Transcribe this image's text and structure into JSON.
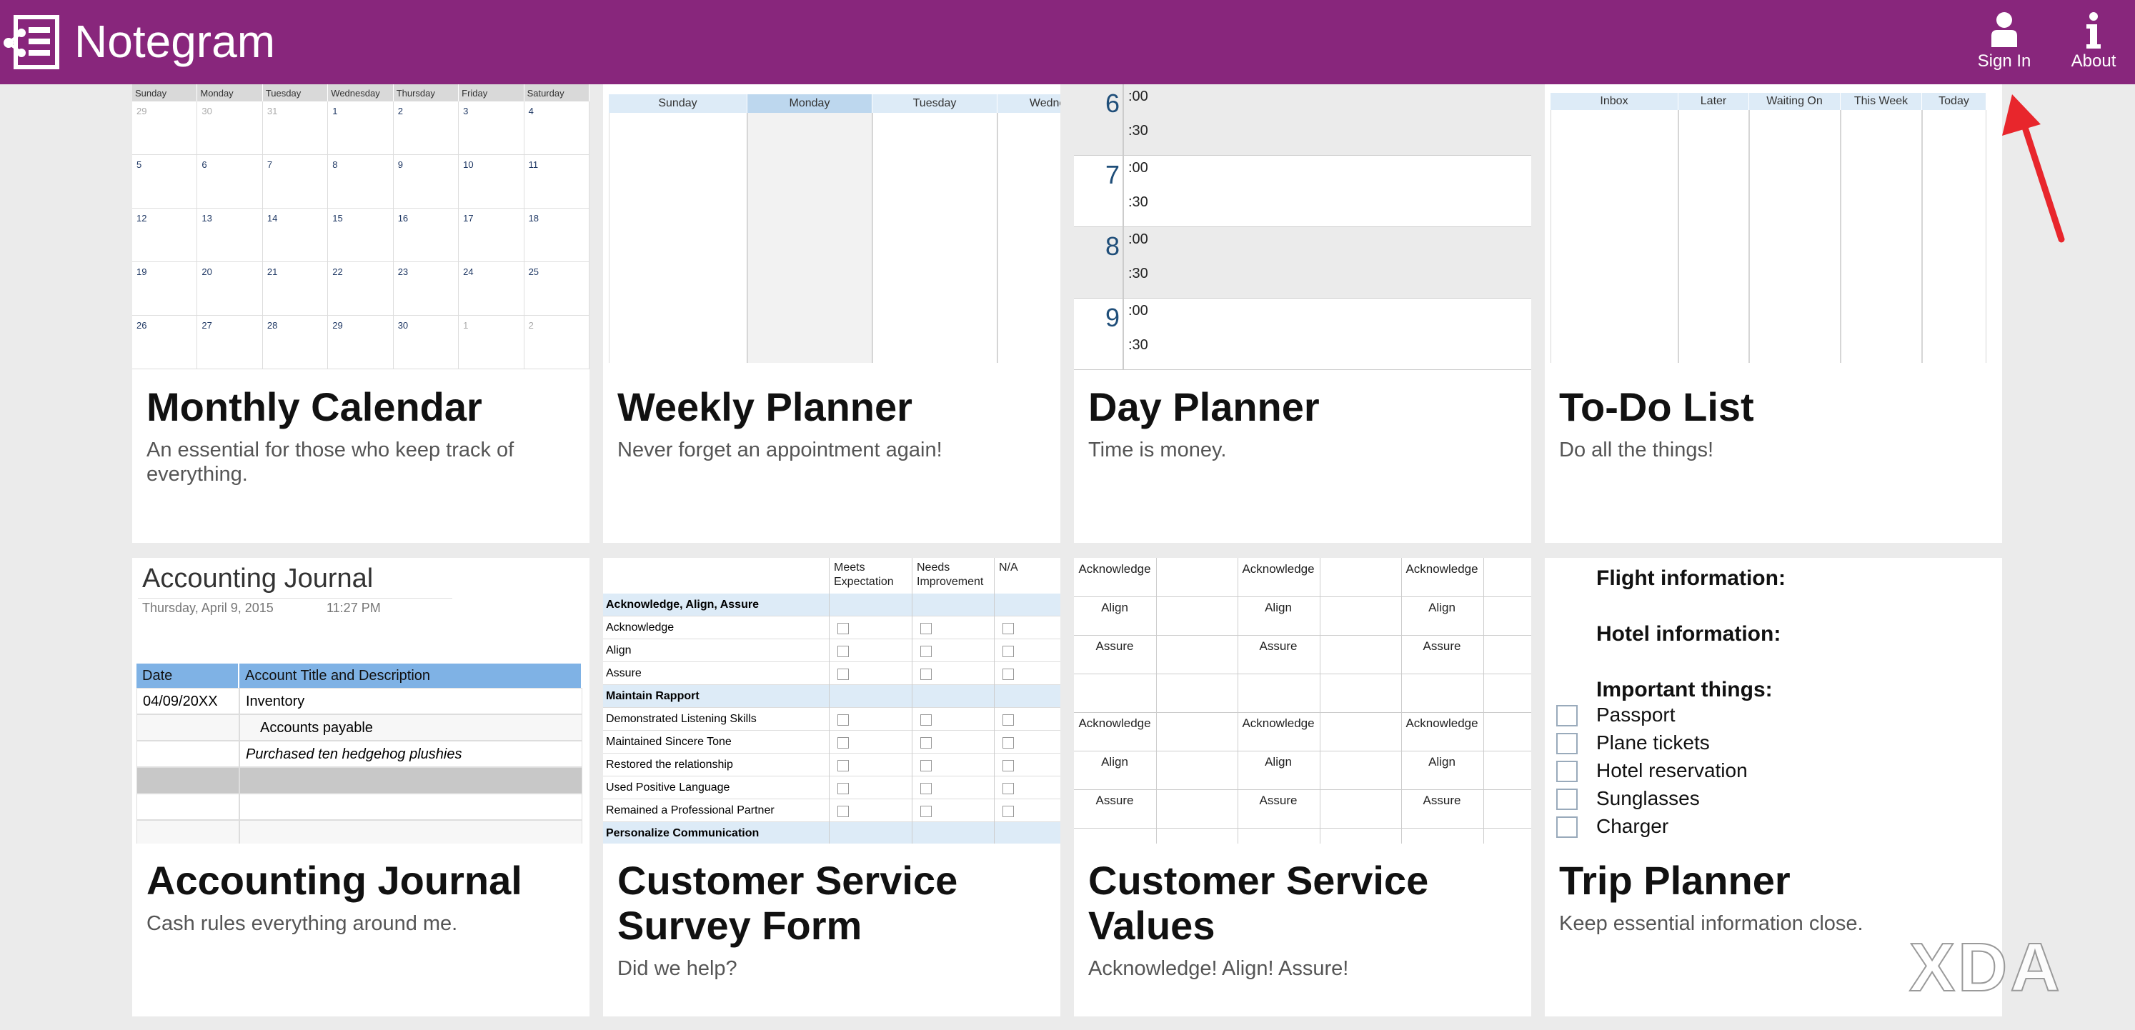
{
  "header": {
    "app_name": "Notegram",
    "sign_in": "Sign In",
    "about": "About"
  },
  "cards": [
    {
      "title": "Monthly Calendar",
      "description": "An essential for those who keep track of everything.",
      "preview": {
        "weekdays": [
          "Sunday",
          "Monday",
          "Tuesday",
          "Wednesday",
          "Thursday",
          "Friday",
          "Saturday"
        ],
        "weeks": [
          [
            "29",
            "30",
            "31",
            "1",
            "2",
            "3",
            "4"
          ],
          [
            "5",
            "6",
            "7",
            "8",
            "9",
            "10",
            "11"
          ],
          [
            "12",
            "13",
            "14",
            "15",
            "16",
            "17",
            "18"
          ],
          [
            "19",
            "20",
            "21",
            "22",
            "23",
            "24",
            "25"
          ],
          [
            "26",
            "27",
            "28",
            "29",
            "30",
            "1",
            "2"
          ]
        ]
      }
    },
    {
      "title": "Weekly Planner",
      "description": "Never forget an appointment again!",
      "preview": {
        "days": [
          "Sunday",
          "Monday",
          "Tuesday",
          "Wednesday"
        ]
      }
    },
    {
      "title": "Day Planner",
      "description": "Time is money.",
      "preview": {
        "hours": [
          "6",
          "7",
          "8",
          "9"
        ],
        "minutes": [
          ":00",
          ":30"
        ]
      }
    },
    {
      "title": "To-Do List",
      "description": "Do all the things!",
      "preview": {
        "columns": [
          "Inbox",
          "Later",
          "Waiting On",
          "This Week",
          "Today"
        ]
      }
    },
    {
      "title": "Accounting Journal",
      "description": "Cash rules everything around me.",
      "preview": {
        "heading": "Accounting Journal",
        "date": "Thursday, April 9, 2015",
        "time": "11:27 PM",
        "columns": [
          "Date",
          "Account Title and Description"
        ],
        "rows": [
          {
            "date": "04/09/20XX",
            "account": "Inventory"
          },
          {
            "account": "Accounts payable"
          },
          {
            "account": "Purchased ten hedgehog plushies"
          }
        ]
      }
    },
    {
      "title": "Customer Service Survey Form",
      "description": "Did we help?",
      "preview": {
        "columns": [
          "Meets Expectation",
          "Needs Improvement",
          "N/A"
        ],
        "sections": [
          {
            "name": "Acknowledge, Align, Assure",
            "items": [
              "Acknowledge",
              "Align",
              "Assure"
            ]
          },
          {
            "name": "Maintain Rapport",
            "items": [
              "Demonstrated Listening Skills",
              "Maintained Sincere Tone",
              "Restored the relationship",
              "Used Positive Language",
              "Remained a Professional Partner"
            ]
          },
          {
            "name": "Personalize Communication",
            "items": []
          }
        ]
      }
    },
    {
      "title": "Customer Service Values",
      "description": "Acknowledge! Align! Assure!",
      "preview": {
        "values": [
          "Acknowledge",
          "Align",
          "Assure"
        ]
      }
    },
    {
      "title": "Trip Planner",
      "description": "Keep essential information close.",
      "preview": {
        "headings": [
          "Flight information:",
          "Hotel information:",
          "Important things:"
        ],
        "checklist": [
          "Passport",
          "Plane tickets",
          "Hotel reservation",
          "Sunglasses",
          "Charger"
        ]
      }
    }
  ],
  "watermark": "XDA"
}
